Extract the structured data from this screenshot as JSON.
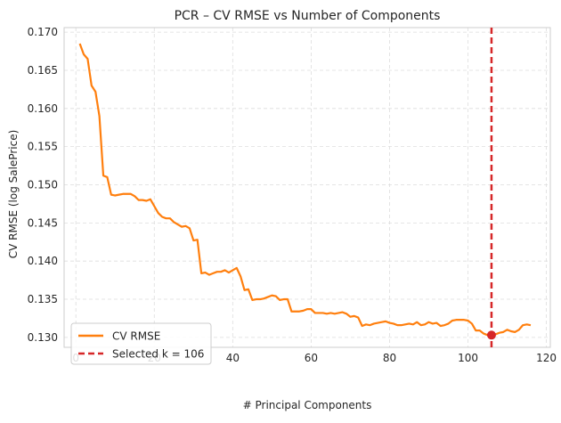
{
  "chart_data": {
    "type": "line",
    "title": "PCR – CV RMSE vs Number of Components",
    "xlabel": "# Principal Components",
    "ylabel": "CV RMSE (log SalePrice)",
    "xlim": [
      -3,
      121
    ],
    "ylim": [
      0.1287,
      0.1706
    ],
    "xticks": [
      0,
      20,
      40,
      60,
      80,
      100,
      120
    ],
    "yticks": [
      0.13,
      0.135,
      0.14,
      0.145,
      0.15,
      0.155,
      0.16,
      0.165,
      0.17
    ],
    "grid": true,
    "legend_position": "lower-left",
    "series": [
      {
        "name": "CV RMSE",
        "color": "#ff7f0e",
        "x": [
          1,
          2,
          3,
          4,
          5,
          6,
          7,
          8,
          9,
          10,
          11,
          12,
          13,
          14,
          15,
          16,
          17,
          18,
          19,
          20,
          21,
          22,
          23,
          24,
          25,
          26,
          27,
          28,
          29,
          30,
          31,
          32,
          33,
          34,
          35,
          36,
          37,
          38,
          39,
          40,
          41,
          42,
          43,
          44,
          45,
          46,
          47,
          48,
          49,
          50,
          51,
          52,
          53,
          54,
          55,
          56,
          57,
          58,
          59,
          60,
          61,
          62,
          63,
          64,
          65,
          66,
          67,
          68,
          69,
          70,
          71,
          72,
          73,
          74,
          75,
          76,
          77,
          78,
          79,
          80,
          81,
          82,
          83,
          84,
          85,
          86,
          87,
          88,
          89,
          90,
          91,
          92,
          93,
          94,
          95,
          96,
          97,
          98,
          99,
          100,
          101,
          102,
          103,
          104,
          105,
          106,
          107,
          108,
          109,
          110,
          111,
          112,
          113,
          114,
          115,
          116
        ],
        "values": [
          0.1685,
          0.1671,
          0.1665,
          0.163,
          0.1622,
          0.159,
          0.1512,
          0.151,
          0.1487,
          0.1486,
          0.1487,
          0.1488,
          0.1488,
          0.1488,
          0.1485,
          0.148,
          0.148,
          0.1479,
          0.1481,
          0.1472,
          0.1463,
          0.1458,
          0.1456,
          0.1456,
          0.1451,
          0.1448,
          0.1445,
          0.1446,
          0.1443,
          0.1427,
          0.1428,
          0.1384,
          0.1385,
          0.1382,
          0.1384,
          0.1386,
          0.1386,
          0.1388,
          0.1385,
          0.1388,
          0.1391,
          0.138,
          0.1362,
          0.1363,
          0.1349,
          0.135,
          0.135,
          0.1351,
          0.1353,
          0.1355,
          0.1354,
          0.1349,
          0.135,
          0.135,
          0.1334,
          0.1334,
          0.1334,
          0.1335,
          0.1337,
          0.1337,
          0.1332,
          0.1332,
          0.1332,
          0.1331,
          0.1332,
          0.1331,
          0.1332,
          0.1333,
          0.1331,
          0.1327,
          0.1328,
          0.1326,
          0.1315,
          0.1317,
          0.1316,
          0.1318,
          0.1319,
          0.132,
          0.1321,
          0.1319,
          0.1318,
          0.1316,
          0.1316,
          0.1317,
          0.1318,
          0.1317,
          0.132,
          0.1316,
          0.1317,
          0.132,
          0.1318,
          0.1319,
          0.1315,
          0.1316,
          0.1318,
          0.1322,
          0.1323,
          0.1323,
          0.1323,
          0.1322,
          0.1318,
          0.1309,
          0.1309,
          0.1305,
          0.1303,
          0.1303,
          0.1304,
          0.1306,
          0.1307,
          0.131,
          0.1308,
          0.1307,
          0.131,
          0.1316,
          0.1317,
          0.1316
        ]
      }
    ],
    "selected": {
      "label": "Selected k = 106",
      "k": 106,
      "value": 0.1303,
      "color": "#d62728"
    }
  }
}
